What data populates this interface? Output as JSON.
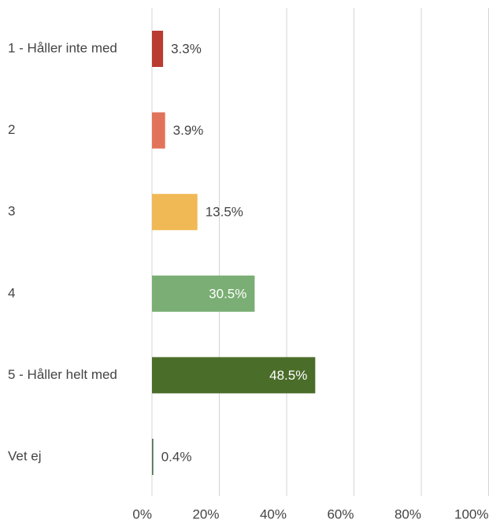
{
  "chart_data": {
    "type": "hbar",
    "categories": [
      "1 - Håller inte med",
      "2",
      "3",
      "4",
      "5 - Håller helt med",
      "Vet ej"
    ],
    "values": [
      3.3,
      3.9,
      13.5,
      30.5,
      48.5,
      0.4
    ],
    "value_labels": [
      "3.3%",
      "3.9%",
      "13.5%",
      "30.5%",
      "48.5%",
      "0.4%"
    ],
    "colors": [
      "#b93b32",
      "#e1735b",
      "#f1b955",
      "#7aae74",
      "#4b6d2a",
      "#4f7152"
    ],
    "xlim": [
      0,
      100
    ],
    "xticks": [
      {
        "value": 0,
        "label": "0%"
      },
      {
        "value": 20,
        "label": "20%"
      },
      {
        "value": 40,
        "label": "40%"
      },
      {
        "value": 60,
        "label": "60%"
      },
      {
        "value": 80,
        "label": "80%"
      },
      {
        "value": 100,
        "label": "100%"
      }
    ],
    "grid": true
  }
}
